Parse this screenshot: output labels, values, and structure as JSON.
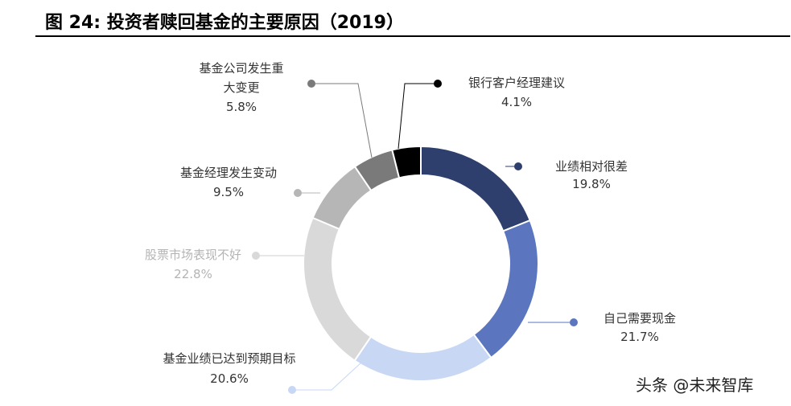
{
  "title": "图 24: 投资者赎回基金的主要原因（2019）",
  "watermark": "头条 @未来智库",
  "chart_data": {
    "type": "donut",
    "title": "图 24: 投资者赎回基金的主要原因（2019）",
    "unit": "%",
    "slices": [
      {
        "label": "业绩相对很差",
        "value": 19.8,
        "value_label": "19.8%",
        "color": "#2e3f6e",
        "label_color": "#333333"
      },
      {
        "label": "自己需要现金",
        "value": 21.7,
        "value_label": "21.7%",
        "color": "#5b76bf",
        "label_color": "#333333"
      },
      {
        "label": "基金业绩已达到预期目标",
        "value": 20.6,
        "value_label": "20.6%",
        "color": "#c7d7f4",
        "label_color": "#333333"
      },
      {
        "label": "股票市场表现不好",
        "value": 22.8,
        "value_label": "22.8%",
        "color": "#d9d9d9",
        "label_color": "#b4b4b4"
      },
      {
        "label": "基金经理发生变动",
        "value": 9.5,
        "value_label": "9.5%",
        "color": "#b6b6b6",
        "label_color": "#333333"
      },
      {
        "label": "基金公司发生重大变更",
        "value": 5.8,
        "value_label": "5.8%",
        "color": "#7a7a7a",
        "label_color": "#333333"
      },
      {
        "label": "银行客户经理建议",
        "value": 4.1,
        "value_label": "4.1%",
        "color": "#000000",
        "label_color": "#333333"
      }
    ]
  }
}
